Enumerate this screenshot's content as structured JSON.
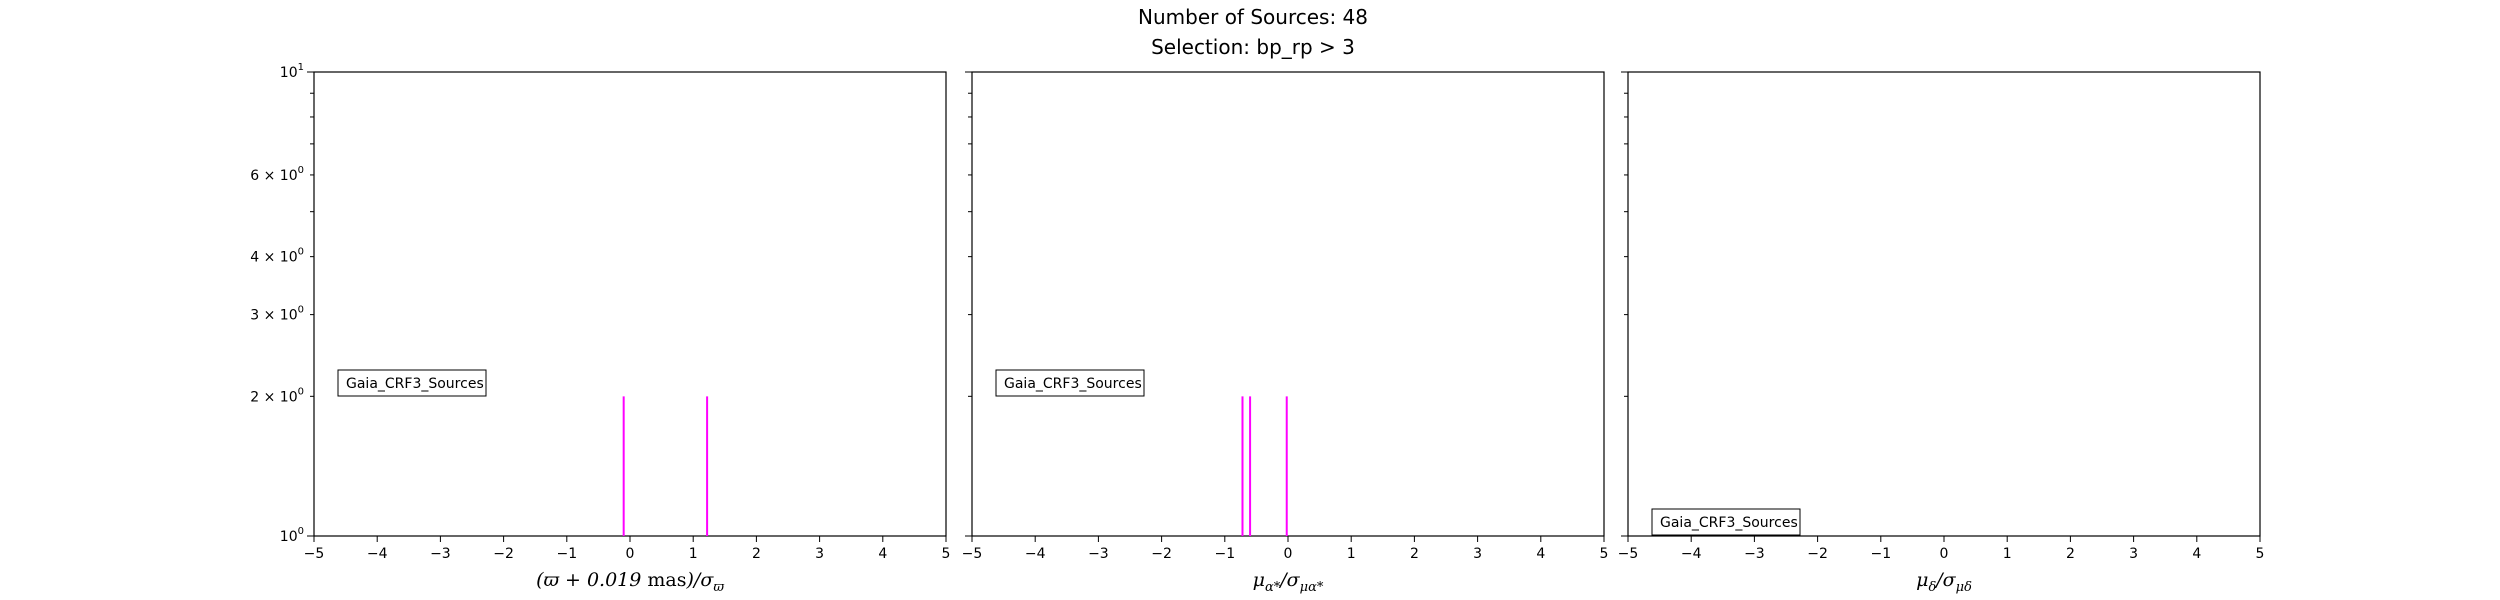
{
  "figure": {
    "title_line1": "Number of Sources: 48",
    "title_line2": "Selection: bp_rp > 3",
    "line_color": "#ff00ff"
  },
  "chart_data": [
    {
      "type": "histogram",
      "panel": "parallax",
      "xlabel": "(ϖ + 0.019 mas)/σϖ",
      "xlim": [
        -5,
        5
      ],
      "ylim": [
        1,
        10
      ],
      "yscale": "log",
      "grid": false,
      "x_ticks": [
        "−5",
        "−4",
        "−3",
        "−2",
        "−1",
        "0",
        "1",
        "2",
        "3",
        "4",
        "5"
      ],
      "y_ticks": [
        {
          "value": 10,
          "label": "10",
          "sup": "1"
        },
        {
          "value": 6,
          "label": "6 × 10",
          "sup": "0"
        },
        {
          "value": 4,
          "label": "4 × 10",
          "sup": "0"
        },
        {
          "value": 3,
          "label": "3 × 10",
          "sup": "0"
        },
        {
          "value": 2,
          "label": "2 × 10",
          "sup": "0"
        },
        {
          "value": 1,
          "label": "10",
          "sup": "0"
        }
      ],
      "legend": "Gaia_CRF3_Sources",
      "legend_position": "center-left",
      "bars": [
        {
          "x": -0.1,
          "count": 2
        },
        {
          "x": 1.22,
          "count": 2
        }
      ]
    },
    {
      "type": "histogram",
      "panel": "pmra",
      "xlabel": "μα*/σμα*",
      "xlim": [
        -5,
        5
      ],
      "ylim": [
        1,
        10
      ],
      "yscale": "log",
      "grid": false,
      "x_ticks": [
        "−5",
        "−4",
        "−3",
        "−2",
        "−1",
        "0",
        "1",
        "2",
        "3",
        "4",
        "5"
      ],
      "legend": "Gaia_CRF3_Sources",
      "legend_position": "center-left",
      "bars": [
        {
          "x": -0.72,
          "count": 2
        },
        {
          "x": -0.6,
          "count": 2
        },
        {
          "x": -0.02,
          "count": 2
        }
      ]
    },
    {
      "type": "histogram",
      "panel": "pmdec",
      "xlabel": "μδ/σμδ",
      "xlim": [
        -5,
        5
      ],
      "ylim": [
        1,
        10
      ],
      "yscale": "log",
      "grid": false,
      "x_ticks": [
        "−5",
        "−4",
        "−3",
        "−2",
        "−1",
        "0",
        "1",
        "2",
        "3",
        "4",
        "5"
      ],
      "legend": "Gaia_CRF3_Sources",
      "legend_position": "lower-left",
      "bars": []
    }
  ]
}
